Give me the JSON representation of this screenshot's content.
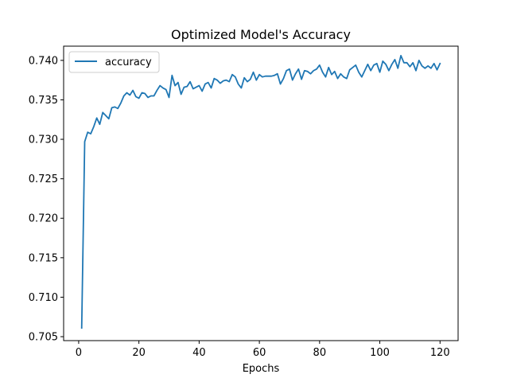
{
  "chart_data": {
    "type": "line",
    "title": "Optimized Model's Accuracy",
    "xlabel": "Epochs",
    "ylabel": "",
    "xlim": [
      -5,
      126
    ],
    "ylim": [
      0.7045,
      0.7418
    ],
    "xticks": [
      0,
      20,
      40,
      60,
      80,
      100,
      120
    ],
    "xtick_labels": [
      "0",
      "20",
      "40",
      "60",
      "80",
      "100",
      "120"
    ],
    "yticks": [
      0.705,
      0.71,
      0.715,
      0.72,
      0.725,
      0.73,
      0.735,
      0.74
    ],
    "ytick_labels": [
      "0.705",
      "0.710",
      "0.715",
      "0.720",
      "0.725",
      "0.730",
      "0.735",
      "0.740"
    ],
    "grid": false,
    "legend_position": "top-left",
    "series": [
      {
        "name": "accuracy",
        "color": "#1f77b4",
        "x": [
          1,
          2,
          3,
          4,
          5,
          6,
          7,
          8,
          9,
          10,
          11,
          12,
          13,
          14,
          15,
          16,
          17,
          18,
          19,
          20,
          21,
          22,
          23,
          24,
          25,
          26,
          27,
          28,
          29,
          30,
          31,
          32,
          33,
          34,
          35,
          36,
          37,
          38,
          39,
          40,
          41,
          42,
          43,
          44,
          45,
          46,
          47,
          48,
          49,
          50,
          51,
          52,
          53,
          54,
          55,
          56,
          57,
          58,
          59,
          60,
          61,
          62,
          63,
          64,
          65,
          66,
          67,
          68,
          69,
          70,
          71,
          72,
          73,
          74,
          75,
          76,
          77,
          78,
          79,
          80,
          81,
          82,
          83,
          84,
          85,
          86,
          87,
          88,
          89,
          90,
          91,
          92,
          93,
          94,
          95,
          96,
          97,
          98,
          99,
          100,
          101,
          102,
          103,
          104,
          105,
          106,
          107,
          108,
          109,
          110,
          111,
          112,
          113,
          114,
          115,
          116,
          117,
          118,
          119,
          120
        ],
        "values": [
          0.7061,
          0.7297,
          0.7309,
          0.7307,
          0.7316,
          0.7327,
          0.7319,
          0.7334,
          0.733,
          0.7326,
          0.734,
          0.7341,
          0.7339,
          0.7346,
          0.7355,
          0.7359,
          0.7356,
          0.7362,
          0.7354,
          0.7352,
          0.7359,
          0.7358,
          0.7353,
          0.7355,
          0.7355,
          0.7362,
          0.7368,
          0.7365,
          0.7363,
          0.7353,
          0.7381,
          0.7368,
          0.7372,
          0.7357,
          0.7366,
          0.7367,
          0.7373,
          0.7364,
          0.7366,
          0.7368,
          0.7361,
          0.737,
          0.7372,
          0.7365,
          0.7377,
          0.7375,
          0.7371,
          0.7374,
          0.7375,
          0.7373,
          0.7382,
          0.7379,
          0.737,
          0.7365,
          0.7378,
          0.7373,
          0.7376,
          0.7385,
          0.7375,
          0.7382,
          0.7379,
          0.738,
          0.738,
          0.738,
          0.7381,
          0.7383,
          0.737,
          0.7377,
          0.7387,
          0.7389,
          0.7375,
          0.7383,
          0.7389,
          0.7376,
          0.7387,
          0.7386,
          0.7383,
          0.7387,
          0.7389,
          0.7394,
          0.7385,
          0.7379,
          0.7391,
          0.7382,
          0.7386,
          0.7377,
          0.7383,
          0.7379,
          0.7377,
          0.7388,
          0.7391,
          0.7394,
          0.7385,
          0.7379,
          0.7387,
          0.7395,
          0.7387,
          0.7394,
          0.7396,
          0.7385,
          0.7399,
          0.7395,
          0.7387,
          0.7395,
          0.7401,
          0.739,
          0.7406,
          0.7397,
          0.7397,
          0.7392,
          0.7397,
          0.7387,
          0.74,
          0.7393,
          0.739,
          0.7393,
          0.739,
          0.7396,
          0.7388,
          0.7396
        ]
      }
    ]
  }
}
